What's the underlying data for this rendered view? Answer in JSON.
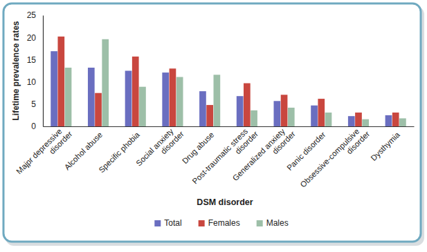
{
  "chart_data": {
    "type": "bar",
    "categories": [
      "Majpr depressive disorder",
      "Alcohol abuse",
      "Specific phobia",
      "Social anxiety disorder",
      "Drug abuse",
      "Post-traumatic stress disorder",
      "Generalized anxiety disorder",
      "Panic disorder",
      "Obsessive-compulsive disorder",
      "Dysthymia"
    ],
    "series": [
      {
        "name": "Total",
        "color": "#6a6ec0",
        "values": [
          16.9,
          13.2,
          12.5,
          12.1,
          7.9,
          6.8,
          5.7,
          4.7,
          2.3,
          2.5
        ]
      },
      {
        "name": "Females",
        "color": "#c9473f",
        "values": [
          20.2,
          7.5,
          15.7,
          13.0,
          4.8,
          9.7,
          7.1,
          6.2,
          3.1,
          3.1
        ]
      },
      {
        "name": "Males",
        "color": "#9dbfa8",
        "values": [
          13.2,
          19.6,
          8.9,
          11.1,
          11.6,
          3.6,
          4.2,
          3.1,
          1.6,
          1.8
        ]
      }
    ],
    "x_label": "DSM disorder",
    "y_label": "Lifetime prevalence rates",
    "ylim": [
      0,
      25
    ],
    "yticks": [
      0,
      5,
      10,
      15,
      20,
      25
    ],
    "grid": false,
    "legend": "bottom"
  }
}
